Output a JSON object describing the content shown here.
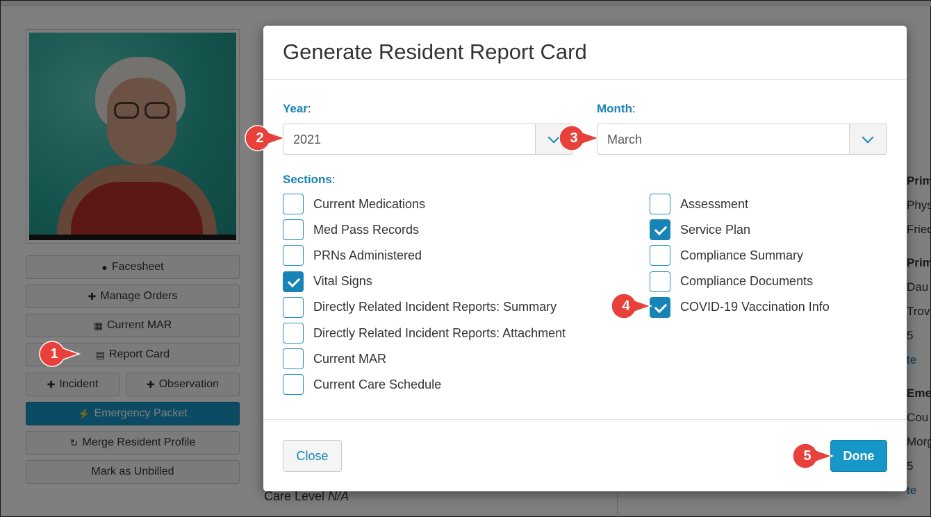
{
  "sidebar": {
    "buttons": [
      {
        "label": "Facesheet",
        "icon": "user-icon"
      },
      {
        "label": "Manage Orders",
        "icon": "medkit-icon"
      },
      {
        "label": "Current MAR",
        "icon": "calendar-icon"
      },
      {
        "label": "Report Card",
        "icon": "file-icon"
      },
      {
        "label": "Incident",
        "icon": "plus-icon"
      },
      {
        "label": "Observation",
        "icon": "plus-icon"
      },
      {
        "label": "Emergency Packet",
        "icon": "bolt-icon"
      },
      {
        "label": "Merge Resident Profile",
        "icon": "refresh-icon"
      },
      {
        "label": "Mark as Unbilled",
        "icon": ""
      }
    ]
  },
  "page": {
    "care_level_label": "Care Level",
    "care_level_value": "N/A",
    "right_col": [
      "Prim",
      "Phys",
      "Fried",
      "Prim",
      "Dau",
      "Trov",
      "5",
      "te",
      "Eme",
      "Cou",
      "Morg",
      "5",
      "te"
    ]
  },
  "modal": {
    "title": "Generate Resident Report Card",
    "year_label": "Year",
    "year_value": "2021",
    "month_label": "Month",
    "month_value": "March",
    "sections_label": "Sections",
    "colon": ":",
    "sections_left": [
      {
        "label": "Current Medications",
        "checked": false
      },
      {
        "label": "Med Pass Records",
        "checked": false
      },
      {
        "label": "PRNs Administered",
        "checked": false
      },
      {
        "label": "Vital Signs",
        "checked": true
      },
      {
        "label": "Directly Related Incident Reports: Summary",
        "checked": false
      },
      {
        "label": "Directly Related Incident Reports: Attachment",
        "checked": false
      },
      {
        "label": "Current MAR",
        "checked": false
      },
      {
        "label": "Current Care Schedule",
        "checked": false
      }
    ],
    "sections_right": [
      {
        "label": "Assessment",
        "checked": false
      },
      {
        "label": "Service Plan",
        "checked": true
      },
      {
        "label": "Compliance Summary",
        "checked": false
      },
      {
        "label": "Compliance Documents",
        "checked": false
      },
      {
        "label": "COVID-19 Vaccination Info",
        "checked": true
      }
    ],
    "close_label": "Close",
    "done_label": "Done"
  },
  "callouts": [
    "1",
    "2",
    "3",
    "4",
    "5"
  ],
  "colors": {
    "accent": "#1784b6",
    "primary_button": "#1797c8",
    "callout": "#e8413c"
  }
}
